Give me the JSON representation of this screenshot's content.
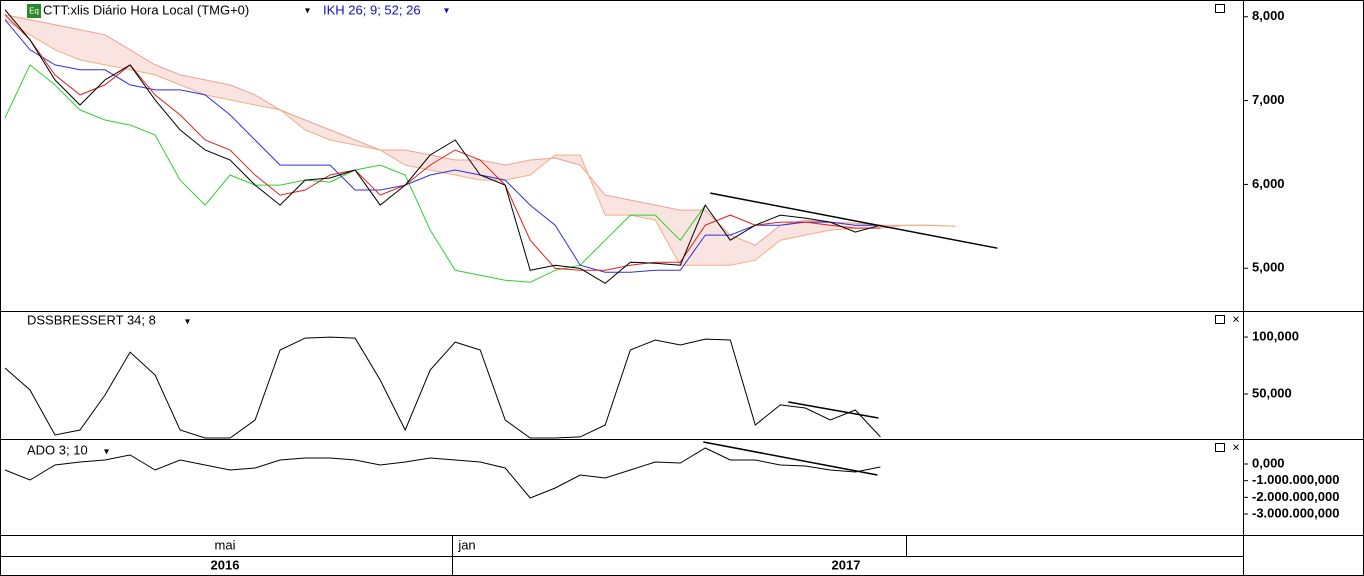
{
  "icon": "Eq",
  "chart_data": [
    {
      "type": "line",
      "title": "CTT:xlis Diário Hora Local (TMG+0)",
      "indicator": "IKH 26; 9; 52; 26",
      "x": [
        0,
        1,
        2,
        3,
        4,
        5,
        6,
        7,
        8,
        9,
        10,
        11,
        12,
        13,
        14,
        15,
        16,
        17,
        18,
        19,
        20,
        21,
        22,
        23,
        24,
        25,
        26,
        27,
        28,
        29,
        30,
        31,
        32,
        33,
        34,
        35,
        36,
        37,
        38
      ],
      "xlim": [
        -0.2,
        49.5
      ],
      "ylim": [
        4490,
        8200
      ],
      "yticks": [
        {
          "value": 5000,
          "label": "5,000"
        },
        {
          "value": 6000,
          "label": "6,000"
        },
        {
          "value": 7000,
          "label": "7,000"
        },
        {
          "value": 8000,
          "label": "8,000"
        }
      ],
      "series": [
        {
          "color": "#f0a090",
          "values": [
            8024,
            7964,
            7904,
            7845,
            7785,
            7606,
            7426,
            7307,
            7247,
            7187,
            7068,
            6889,
            6769,
            6650,
            6530,
            6411,
            6411,
            6351,
            6291,
            6291,
            6231,
            6291,
            6315,
            6231,
            5873,
            5813,
            5753,
            5694,
            5694,
            5395,
            5275,
            5514,
            5574,
            5550,
            5538,
            5514,
            5514,
            5514,
            5502
          ]
        },
        {
          "color": "#f0b080",
          "values": [
            7964,
            7785,
            7606,
            7486,
            7426,
            7367,
            7307,
            7187,
            7068,
            7008,
            6948,
            6889,
            6650,
            6530,
            6470,
            6411,
            6231,
            6172,
            6112,
            6052,
            6052,
            6112,
            6351,
            6351,
            5634,
            5634,
            5574,
            5036,
            5036,
            5036,
            5096,
            5335,
            5395,
            5455,
            5479,
            5479,
            5514,
            5514,
            5502
          ]
        },
        {
          "color": "#30d030",
          "values": [
            6793,
            7426,
            7187,
            6889,
            6769,
            6709,
            6590,
            6052,
            5753,
            6112,
            5992,
            5992,
            6052,
            6028,
            6172,
            6231,
            6112,
            5455,
            4976,
            4917,
            4857,
            4833,
            4976,
            5036,
            5335,
            5634,
            5634,
            5335,
            5753,
            null,
            null,
            null,
            null,
            null,
            null,
            null,
            null,
            null,
            null
          ]
        },
        {
          "color": "#3030e0",
          "values": [
            7964,
            7606,
            7426,
            7367,
            7367,
            7187,
            7128,
            7128,
            7068,
            6829,
            6530,
            6231,
            6231,
            6231,
            5933,
            5933,
            5992,
            6112,
            6172,
            6112,
            6052,
            5753,
            5514,
            5036,
            4953,
            4953,
            4976,
            4976,
            5395,
            5395,
            5514,
            5514,
            5550,
            5550,
            5514,
            5514,
            null,
            null,
            null
          ]
        },
        {
          "color": "#e02020",
          "values": [
            8024,
            7725,
            7307,
            7068,
            7187,
            7426,
            7068,
            6829,
            6530,
            6411,
            6112,
            5873,
            5933,
            6112,
            6172,
            5873,
            5992,
            6231,
            6411,
            6291,
            5992,
            5335,
            4998,
            4976,
            4976,
            5036,
            5072,
            5072,
            5514,
            5634,
            5514,
            5550,
            5550,
            5514,
            5479,
            5479,
            null,
            null,
            null
          ]
        },
        {
          "color": "#000000",
          "values": [
            8084,
            7725,
            7247,
            6948,
            7247,
            7426,
            7008,
            6650,
            6411,
            6291,
            5992,
            5753,
            6052,
            6076,
            6172,
            5753,
            5992,
            6351,
            6530,
            6112,
            5992,
            4976,
            5036,
            4998,
            4821,
            5072,
            5060,
            5036,
            5753,
            5335,
            5514,
            5634,
            5598,
            5550,
            5431,
            5514,
            null,
            null,
            null
          ]
        }
      ],
      "trendline": {
        "x": [
          28.2,
          39.68
        ],
        "values": [
          5897,
          5239
        ]
      }
    },
    {
      "type": "line",
      "title": "DSSBRESSERT 34; 8",
      "x": [
        0,
        1,
        2,
        3,
        4,
        5,
        6,
        7,
        8,
        9,
        10,
        11,
        12,
        13,
        14,
        15,
        16,
        17,
        18,
        19,
        20,
        21,
        22,
        23,
        24,
        25,
        26,
        27,
        28,
        29,
        30,
        31,
        32,
        33,
        34,
        35
      ],
      "xlim": [
        -0.2,
        49.5
      ],
      "ylim": [
        10500,
        122000
      ],
      "yticks": [
        {
          "value": 50000,
          "label": "50,000"
        },
        {
          "value": 100000,
          "label": "100,000"
        }
      ],
      "series": [
        {
          "color": "#000000",
          "values": [
            72800,
            53500,
            14000,
            18400,
            49100,
            86800,
            66700,
            18400,
            11400,
            11400,
            27200,
            88600,
            99100,
            100000,
            99100,
            62300,
            18400,
            71100,
            95600,
            88600,
            27200,
            11400,
            11400,
            12300,
            22800,
            88600,
            97400,
            93000,
            98200,
            97400,
            22800,
            40400,
            37700,
            27200,
            36000,
            12300
          ]
        }
      ],
      "trendline": {
        "x": [
          31.32,
          34.92
        ],
        "values": [
          43000,
          28900
        ]
      }
    },
    {
      "type": "line",
      "title": "ADO 3; 10",
      "x": [
        0,
        1,
        2,
        3,
        4,
        5,
        6,
        7,
        8,
        9,
        10,
        11,
        12,
        13,
        14,
        15,
        16,
        17,
        18,
        19,
        20,
        21,
        22,
        23,
        24,
        25,
        26,
        27,
        28,
        29,
        30,
        31,
        32,
        33,
        34,
        35
      ],
      "xlim": [
        -0.2,
        49.5
      ],
      "ylim": [
        -4260000000,
        1440000000
      ],
      "yticks": [
        {
          "value": 0,
          "label": "0,000"
        },
        {
          "value": -1000000000,
          "label": "-1.000.000,000"
        },
        {
          "value": -2000000000,
          "label": "-2.000.000,000"
        },
        {
          "value": -3000000000,
          "label": "-3.000.000,000"
        }
      ],
      "series": [
        {
          "color": "#000000",
          "values": [
            -360000000,
            -960000000,
            -60000000,
            120000000,
            240000000,
            540000000,
            -360000000,
            240000000,
            -60000000,
            -360000000,
            -240000000,
            240000000,
            360000000,
            360000000,
            240000000,
            -60000000,
            120000000,
            360000000,
            240000000,
            120000000,
            -240000000,
            -2040000000,
            -1440000000,
            -660000000,
            -840000000,
            -360000000,
            120000000,
            60000000,
            960000000,
            240000000,
            240000000,
            -60000000,
            -120000000,
            -360000000,
            -480000000,
            -180000000
          ]
        }
      ],
      "trendline": {
        "x": [
          27.92,
          34.88
        ],
        "values": [
          1320000000,
          -660000000
        ]
      }
    }
  ],
  "time_axis": {
    "months": [
      "mai",
      "jan"
    ],
    "years": [
      "2016",
      "2017"
    ]
  }
}
